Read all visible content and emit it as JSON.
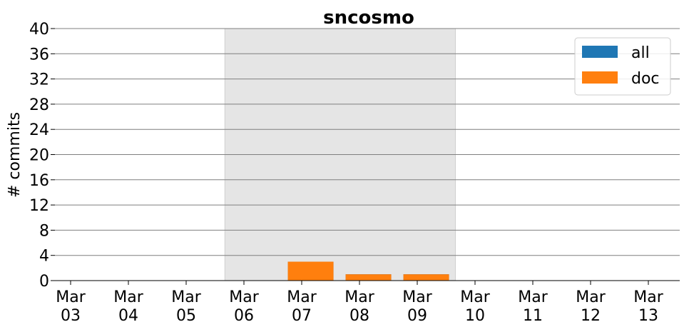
{
  "chart_data": {
    "type": "bar",
    "title": "sncosmo",
    "ylabel": "# commits",
    "xlabel": "",
    "ylim": [
      0,
      40
    ],
    "yticks": [
      0,
      4,
      8,
      12,
      16,
      20,
      24,
      28,
      32,
      36,
      40
    ],
    "grid": "horizontal",
    "categories": [
      [
        "Mar",
        "03"
      ],
      [
        "Mar",
        "04"
      ],
      [
        "Mar",
        "05"
      ],
      [
        "Mar",
        "06"
      ],
      [
        "Mar",
        "07"
      ],
      [
        "Mar",
        "08"
      ],
      [
        "Mar",
        "09"
      ],
      [
        "Mar",
        "10"
      ],
      [
        "Mar",
        "11"
      ],
      [
        "Mar",
        "12"
      ],
      [
        "Mar",
        "13"
      ]
    ],
    "highlight_range": [
      "Mar 06",
      "Mar 09"
    ],
    "series": [
      {
        "name": "all",
        "color": "#1f77b4",
        "values": [
          0,
          0,
          0,
          0,
          3,
          1,
          1,
          0,
          0,
          0,
          0
        ]
      },
      {
        "name": "doc",
        "color": "#ff7f0e",
        "values": [
          0,
          0,
          0,
          0,
          3,
          1,
          1,
          0,
          0,
          0,
          0
        ]
      }
    ],
    "legend": {
      "position": "top-right",
      "entries": [
        "all",
        "doc"
      ]
    }
  }
}
